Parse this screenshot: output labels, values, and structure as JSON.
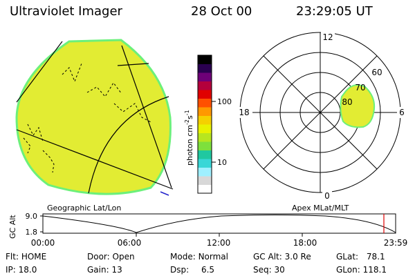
{
  "header": {
    "title": "Ultraviolet Imager",
    "date": "28 Oct 00",
    "time": "23:29:05 UT"
  },
  "colorbar": {
    "label": "photon cm-2s-1",
    "label_main": "photon cm",
    "exp1": "-2",
    "mid": "s",
    "exp2": "-1",
    "tick_100": "100",
    "tick_10": "10",
    "scale": "log",
    "colors": [
      "#ffffff",
      "#d8d8d8",
      "#9ff0ff",
      "#39d7d7",
      "#20c8a0",
      "#7ee03c",
      "#b7e61f",
      "#e8f200",
      "#f5d000",
      "#ff9800",
      "#ff5000",
      "#e00000",
      "#b4003c",
      "#6e0078",
      "#2a0050",
      "#000000"
    ]
  },
  "left_panel": {
    "label": "Geographic Lat/Lon",
    "fill_color": "#e2ec33",
    "rim_color": "#6cf07a"
  },
  "polar_plot": {
    "label": "Apex MLat/MLT",
    "mlt_labels": {
      "top": "12",
      "right": "6",
      "bottom": "0",
      "left": "18"
    },
    "lat_labels": [
      "60",
      "70",
      "80"
    ],
    "oval_color": "#e2ec33",
    "oval_rim": "#6cf07a"
  },
  "altitude_plot": {
    "ylabel": "GC Alt",
    "ytick_top": "9.0",
    "ytick_bottom": "1.8",
    "xticks": [
      "00:00",
      "06:00",
      "12:00",
      "18:00",
      "23:59"
    ],
    "marker_color": "#dd0000"
  },
  "info": {
    "flt_label": "Flt:",
    "flt_value": "HOME",
    "ip_label": "IP:",
    "ip_value": "18.0",
    "door_label": "Door:",
    "door_value": "Open",
    "gain_label": "Gain:",
    "gain_value": "13",
    "mode_label": "Mode:",
    "mode_value": "Normal",
    "dsp_label": "Dsp:",
    "dsp_value": "6.5",
    "gcalt_label": "GC Alt:",
    "gcalt_value": "3.0 Re",
    "seq_label": "Seq:",
    "seq_value": "30",
    "glat_label": "GLat:",
    "glat_value": "78.1",
    "glon_label": "GLon:",
    "glon_value": "118.1"
  }
}
